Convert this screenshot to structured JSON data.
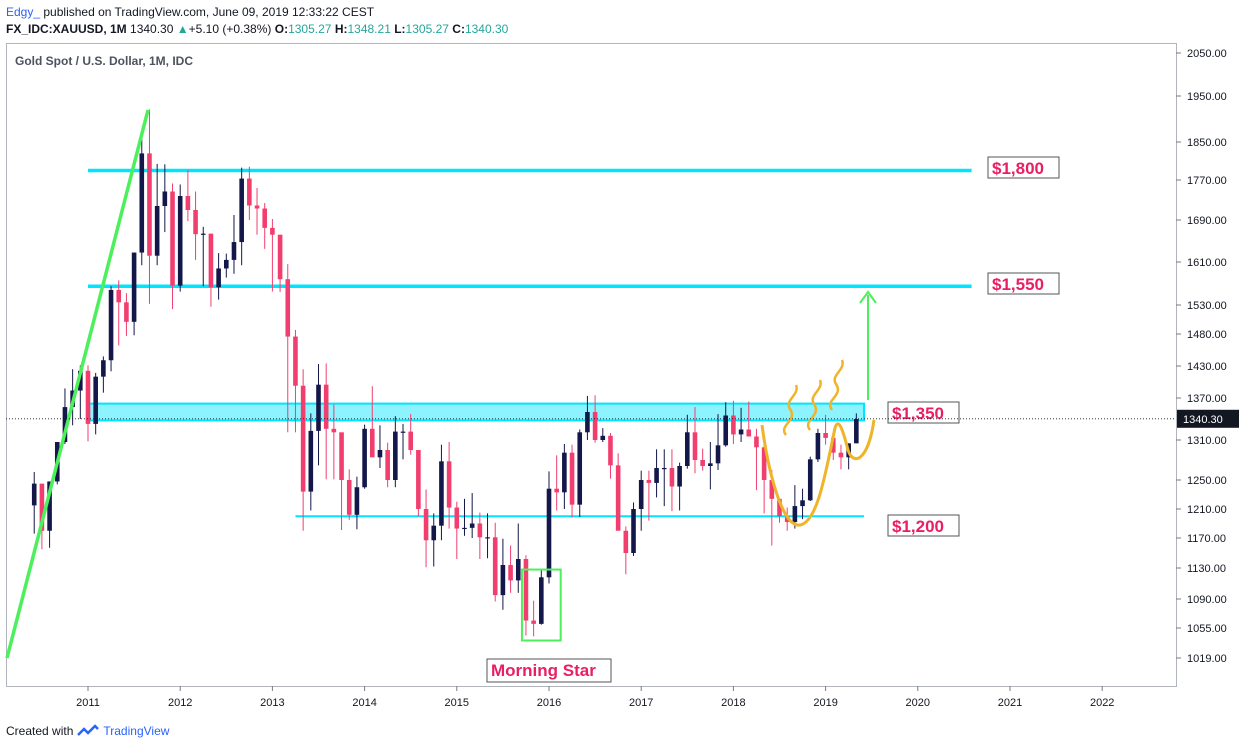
{
  "header": {
    "user": "Edgy_",
    "published": "published on TradingView.com, June 09, 2019 12:33:22 CEST",
    "symbol": "FX_IDC:XAUUSD, 1M",
    "last": "1340.30",
    "change": "+5.10 (+0.38%)",
    "o_label": "O:",
    "o": "1305.27",
    "h_label": "H:",
    "h": "1348.21",
    "l_label": "L:",
    "l": "1305.27",
    "c_label": "C:",
    "c": "1340.30"
  },
  "footer": {
    "created": "Created with",
    "brand": "TradingView"
  },
  "colors": {
    "up": "#131749",
    "down": "#f23e6f",
    "level": "#00e5ff",
    "trend": "#4cf05a",
    "cup": "#f0b429",
    "accent_text": "#e91e63",
    "last_price_bg": "#131722"
  },
  "chart_data": {
    "type": "candlestick",
    "title": "Gold Spot / U.S. Dollar, 1M, IDC",
    "y_ticks": [
      "2050.00",
      "1950.00",
      "1850.00",
      "1770.00",
      "1690.00",
      "1610.00",
      "1530.00",
      "1480.00",
      "1430.00",
      "1370.00",
      "1310.00",
      "1250.00",
      "1210.00",
      "1170.00",
      "1130.00",
      "1090.00",
      "1055.00",
      "1019.00"
    ],
    "x_ticks": [
      "2011",
      "2012",
      "2013",
      "2014",
      "2015",
      "2016",
      "2017",
      "2018",
      "2019",
      "2020",
      "2021",
      "2022"
    ],
    "last_price": "1340.30",
    "levels": [
      {
        "label": "$1,800",
        "value": 1790,
        "from": "2011-01",
        "to": "2020-08"
      },
      {
        "label": "$1,550",
        "value": 1565,
        "from": "2011-01",
        "to": "2020-08"
      },
      {
        "label": "$1,350",
        "value": 1350,
        "from": "2011-01",
        "to": "2019-06",
        "zone": [
          1338,
          1362
        ]
      },
      {
        "label": "$1,200",
        "value": 1200,
        "from": "2013-04",
        "to": "2019-06"
      }
    ],
    "annotations": [
      {
        "label": "Morning Star",
        "box": {
          "from": "2015-10",
          "to": "2016-02",
          "low": 1040,
          "high": 1128
        }
      }
    ],
    "ohlc": {
      "start": "2010-06",
      "values": [
        [
          1215,
          1262,
          1176,
          1245
        ],
        [
          1245,
          1214,
          1155,
          1180
        ],
        [
          1180,
          1246,
          1157,
          1248
        ],
        [
          1248,
          1307,
          1244,
          1307
        ],
        [
          1307,
          1388,
          1304,
          1357
        ],
        [
          1357,
          1424,
          1331,
          1384
        ],
        [
          1384,
          1431,
          1340,
          1421
        ],
        [
          1421,
          1431,
          1308,
          1333
        ],
        [
          1333,
          1417,
          1318,
          1410
        ],
        [
          1410,
          1445,
          1380,
          1439
        ],
        [
          1439,
          1565,
          1420,
          1558
        ],
        [
          1558,
          1576,
          1462,
          1535
        ],
        [
          1535,
          1552,
          1477,
          1501
        ],
        [
          1501,
          1628,
          1478,
          1628
        ],
        [
          1628,
          1876,
          1604,
          1826
        ],
        [
          1826,
          1921,
          1532,
          1622
        ],
        [
          1622,
          1804,
          1604,
          1718
        ],
        [
          1718,
          1803,
          1667,
          1747
        ],
        [
          1747,
          1763,
          1523,
          1566
        ],
        [
          1566,
          1761,
          1555,
          1738
        ],
        [
          1738,
          1791,
          1688,
          1710
        ],
        [
          1710,
          1747,
          1614,
          1663
        ],
        [
          1663,
          1677,
          1565,
          1664
        ],
        [
          1664,
          1640,
          1527,
          1563
        ],
        [
          1563,
          1627,
          1540,
          1598
        ],
        [
          1598,
          1626,
          1581,
          1614
        ],
        [
          1614,
          1700,
          1588,
          1648
        ],
        [
          1648,
          1796,
          1604,
          1773
        ],
        [
          1773,
          1798,
          1690,
          1719
        ],
        [
          1719,
          1754,
          1662,
          1713
        ],
        [
          1713,
          1724,
          1635,
          1675
        ],
        [
          1675,
          1692,
          1555,
          1662
        ],
        [
          1662,
          1616,
          1554,
          1578
        ],
        [
          1578,
          1606,
          1321,
          1476
        ],
        [
          1476,
          1487,
          1321,
          1393
        ],
        [
          1393,
          1424,
          1180,
          1234
        ],
        [
          1234,
          1348,
          1208,
          1323
        ],
        [
          1323,
          1433,
          1272,
          1395
        ],
        [
          1395,
          1434,
          1251,
          1326
        ],
        [
          1326,
          1361,
          1251,
          1321
        ],
        [
          1321,
          1296,
          1181,
          1250
        ],
        [
          1250,
          1266,
          1195,
          1202
        ],
        [
          1202,
          1255,
          1182,
          1240
        ],
        [
          1240,
          1332,
          1238,
          1326
        ],
        [
          1326,
          1392,
          1319,
          1284
        ],
        [
          1284,
          1331,
          1268,
          1295
        ],
        [
          1295,
          1306,
          1240,
          1250
        ],
        [
          1250,
          1344,
          1240,
          1322
        ],
        [
          1322,
          1333,
          1281,
          1322
        ],
        [
          1322,
          1347,
          1288,
          1295
        ],
        [
          1295,
          1295,
          1200,
          1210
        ],
        [
          1210,
          1237,
          1131,
          1167
        ],
        [
          1167,
          1204,
          1132,
          1187
        ],
        [
          1187,
          1303,
          1167,
          1278
        ],
        [
          1278,
          1307,
          1183,
          1212
        ],
        [
          1212,
          1220,
          1142,
          1183
        ],
        [
          1183,
          1224,
          1173,
          1184
        ],
        [
          1184,
          1232,
          1170,
          1190
        ],
        [
          1190,
          1205,
          1142,
          1171
        ],
        [
          1171,
          1204,
          1143,
          1171
        ],
        [
          1171,
          1191,
          1087,
          1095
        ],
        [
          1095,
          1169,
          1077,
          1134
        ],
        [
          1134,
          1160,
          1098,
          1114
        ],
        [
          1114,
          1190,
          1098,
          1142
        ],
        [
          1142,
          1147,
          1046,
          1064
        ],
        [
          1064,
          1088,
          1045,
          1060
        ],
        [
          1060,
          1127,
          1059,
          1118
        ],
        [
          1118,
          1263,
          1110,
          1238
        ],
        [
          1238,
          1287,
          1208,
          1233
        ],
        [
          1233,
          1304,
          1210,
          1291
        ],
        [
          1291,
          1303,
          1198,
          1216
        ],
        [
          1216,
          1325,
          1199,
          1321
        ],
        [
          1321,
          1374,
          1310,
          1350
        ],
        [
          1350,
          1375,
          1306,
          1310
        ],
        [
          1310,
          1327,
          1307,
          1316
        ],
        [
          1316,
          1320,
          1252,
          1272
        ],
        [
          1272,
          1290,
          1252,
          1180
        ],
        [
          1180,
          1186,
          1122,
          1150
        ],
        [
          1150,
          1219,
          1146,
          1210
        ],
        [
          1210,
          1264,
          1180,
          1250
        ],
        [
          1250,
          1264,
          1194,
          1246
        ],
        [
          1246,
          1296,
          1226,
          1268
        ],
        [
          1268,
          1296,
          1214,
          1268
        ],
        [
          1268,
          1296,
          1207,
          1241
        ],
        [
          1241,
          1276,
          1208,
          1271
        ],
        [
          1271,
          1346,
          1267,
          1321
        ],
        [
          1321,
          1357,
          1260,
          1280
        ],
        [
          1280,
          1297,
          1264,
          1271
        ],
        [
          1271,
          1307,
          1237,
          1275
        ],
        [
          1275,
          1347,
          1265,
          1302
        ],
        [
          1302,
          1364,
          1300,
          1345
        ],
        [
          1345,
          1366,
          1304,
          1318
        ],
        [
          1318,
          1356,
          1307,
          1325
        ],
        [
          1325,
          1365,
          1321,
          1315
        ],
        [
          1315,
          1326,
          1236,
          1299
        ],
        [
          1299,
          1310,
          1204,
          1250
        ],
        [
          1250,
          1265,
          1160,
          1224
        ],
        [
          1224,
          1222,
          1191,
          1200
        ],
        [
          1200,
          1212,
          1180,
          1192
        ],
        [
          1192,
          1243,
          1183,
          1214
        ],
        [
          1214,
          1238,
          1196,
          1222
        ],
        [
          1222,
          1285,
          1221,
          1281
        ],
        [
          1281,
          1326,
          1277,
          1320
        ],
        [
          1320,
          1346,
          1303,
          1313
        ],
        [
          1313,
          1309,
          1280,
          1291
        ],
        [
          1291,
          1303,
          1266,
          1284
        ],
        [
          1284,
          1305,
          1266,
          1305
        ],
        [
          1305,
          1348,
          1305,
          1340
        ]
      ]
    }
  }
}
